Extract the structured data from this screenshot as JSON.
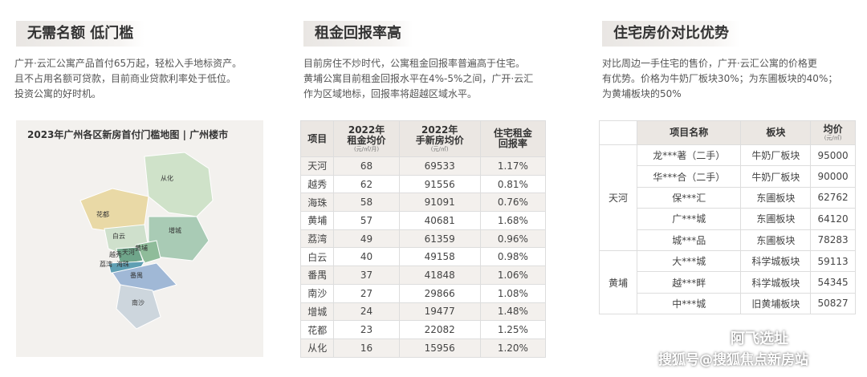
{
  "columns": [
    {
      "heading": "无需名额 低门槛",
      "lines": [
        "广开·云汇公寓产品首付65万起，轻松入手地标资产。",
        "且不占用名额可贷款，目前商业贷款利率处于低位。",
        "投资公寓的好时机。"
      ]
    },
    {
      "heading": "租金回报率高",
      "lines": [
        "目前房住不炒时代，公寓租金回报率普遍高于住宅。",
        "黄埔公寓目前租金回报水平在4%-5%之间，广开·云汇",
        "作为区域地标，回报率将超越区域水平。"
      ]
    },
    {
      "heading": "住宅房价对比优势",
      "lines": [
        "对比周边一手住宅的售价，广开·云汇公寓的价格更",
        "有优势。价格为牛奶厂板块30%；为东圃板块的40%；",
        "为黄埔板块的50%"
      ]
    }
  ],
  "map": {
    "title": "2023年广州各区新房首付门槛地图 | 广州楼市",
    "districts": [
      "从化",
      "花都",
      "白云",
      "增城",
      "黄埔",
      "天河",
      "越秀",
      "荔湾",
      "海珠",
      "番禺",
      "南沙"
    ]
  },
  "rent_table": {
    "headers": [
      {
        "lines": [
          "项目"
        ]
      },
      {
        "lines": [
          "2022年",
          "租金均价"
        ],
        "unit": "(元/㎡/月)"
      },
      {
        "lines": [
          "2022年",
          "手新房均价"
        ],
        "unit": "(元/㎡)"
      },
      {
        "lines": [
          "住宅租金",
          "回报率"
        ]
      }
    ],
    "rows": [
      [
        "天河",
        "68",
        "69533",
        "1.17%"
      ],
      [
        "越秀",
        "62",
        "91556",
        "0.81%"
      ],
      [
        "海珠",
        "58",
        "91091",
        "0.76%"
      ],
      [
        "黄埔",
        "57",
        "40681",
        "1.68%"
      ],
      [
        "荔湾",
        "49",
        "61359",
        "0.96%"
      ],
      [
        "白云",
        "40",
        "49158",
        "0.98%"
      ],
      [
        "番禺",
        "37",
        "41848",
        "1.06%"
      ],
      [
        "南沙",
        "27",
        "29866",
        "1.08%"
      ],
      [
        "增城",
        "24",
        "19477",
        "1.48%"
      ],
      [
        "花都",
        "23",
        "22082",
        "1.25%"
      ],
      [
        "从化",
        "16",
        "15956",
        "1.20%"
      ]
    ]
  },
  "price_table": {
    "headers": [
      {
        "lines": [
          "项目名称"
        ]
      },
      {
        "lines": [
          "板块"
        ]
      },
      {
        "lines": [
          "均价"
        ],
        "unit": "(元/㎡)"
      }
    ],
    "groups": [
      {
        "group": "天河",
        "items": [
          [
            "龙***著（二手）",
            "牛奶厂板块",
            "95000"
          ],
          [
            "华***合（二手）",
            "牛奶厂板块",
            "90000"
          ],
          [
            "保***汇",
            "东圃板块",
            "62762"
          ],
          [
            "广***城",
            "东圃板块",
            "64120"
          ],
          [
            "城***品",
            "东圃板块",
            "78283"
          ]
        ]
      },
      {
        "group": "黄埔",
        "items": [
          [
            "大***城",
            "科学城板块",
            "59113"
          ],
          [
            "越***畔",
            "科学城板块",
            "54345"
          ],
          [
            "中***城",
            "旧黄埔板块",
            "50827"
          ]
        ]
      }
    ]
  },
  "watermarks": [
    "阿飞选址",
    "搜狐号@搜狐焦点新房站"
  ]
}
